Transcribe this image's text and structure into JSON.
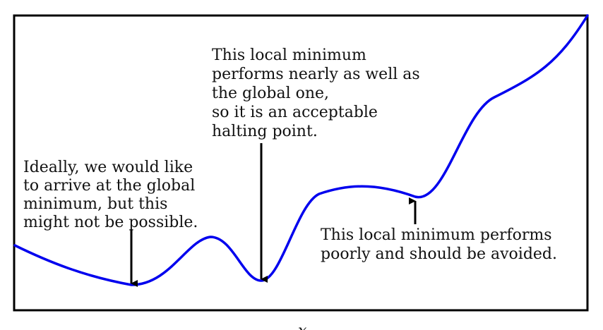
{
  "colors": {
    "curve": "#0000ee",
    "arrow": "#000000",
    "frame": "#000000",
    "text": "#111111"
  },
  "annotations": {
    "global_minimum": [
      "Ideally, we would like",
      "to arrive at the global",
      "minimum, but this",
      "might not be possible."
    ],
    "acceptable_minimum": [
      "This local minimum",
      "performs nearly as well as",
      "the global one,",
      "so it is an acceptable",
      "halting point."
    ],
    "poor_minimum": [
      "This local minimum performs",
      "poorly and should be avoided."
    ]
  },
  "bottom_label": "𝑥"
}
